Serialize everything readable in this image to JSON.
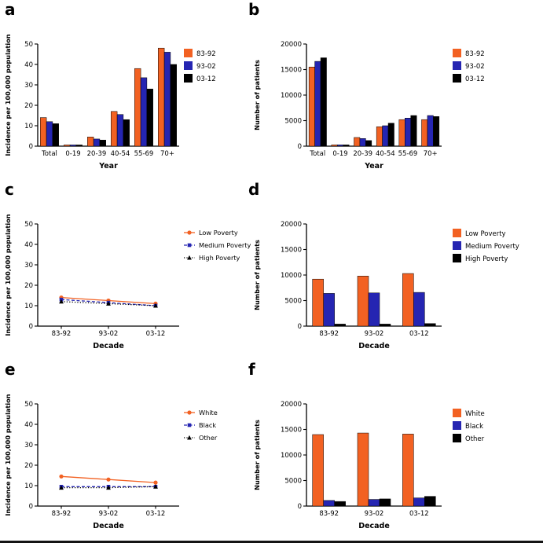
{
  "figure": {
    "background": "#ffffff"
  },
  "colors": {
    "orange": "#F26122",
    "blue": "#2525B2",
    "black": "#000000"
  },
  "chart_data": [
    {
      "panel": "a",
      "type": "bar",
      "column": "left",
      "xlabel": "Year",
      "ylabel": "Incidence per 100,000 population",
      "ylim": [
        0,
        50
      ],
      "yticks": [
        0,
        10,
        20,
        30,
        40,
        50
      ],
      "grid": false,
      "legend_position": "right",
      "categories": [
        "Total",
        "0-19",
        "20-39",
        "40-54",
        "55-69",
        "70+"
      ],
      "series": [
        {
          "name": "83-92",
          "color": "#F26122",
          "values": [
            14,
            0.6,
            4.5,
            17,
            38,
            48
          ]
        },
        {
          "name": "93-02",
          "color": "#2525B2",
          "values": [
            12,
            0.6,
            3.5,
            15.5,
            33.5,
            46
          ]
        },
        {
          "name": "03-12",
          "color": "#000000",
          "values": [
            11,
            0.6,
            3.0,
            13,
            28,
            40
          ]
        }
      ]
    },
    {
      "panel": "b",
      "type": "bar",
      "column": "right",
      "xlabel": "Year",
      "ylabel": "Number of patients",
      "ylim": [
        0,
        20000
      ],
      "yticks": [
        0,
        5000,
        10000,
        15000,
        20000
      ],
      "grid": false,
      "legend_position": "right",
      "categories": [
        "Total",
        "0-19",
        "20-39",
        "40-54",
        "55-69",
        "70+"
      ],
      "series": [
        {
          "name": "83-92",
          "color": "#F26122",
          "values": [
            15500,
            250,
            1700,
            3800,
            5200,
            5200
          ]
        },
        {
          "name": "93-02",
          "color": "#2525B2",
          "values": [
            16600,
            250,
            1500,
            4000,
            5500,
            6000
          ]
        },
        {
          "name": "03-12",
          "color": "#000000",
          "values": [
            17300,
            250,
            1100,
            4500,
            6000,
            5800
          ]
        }
      ]
    },
    {
      "panel": "c",
      "type": "line",
      "column": "left",
      "xlabel": "Decade",
      "ylabel": "Incidence per 100,000 population",
      "ylim": [
        0,
        50
      ],
      "yticks": [
        0,
        10,
        20,
        30,
        40,
        50
      ],
      "grid": false,
      "legend_position": "right",
      "categories": [
        "83-92",
        "93-02",
        "03-12"
      ],
      "series": [
        {
          "name": "Low Poverty",
          "color": "#F26122",
          "marker": "circle",
          "dash": "",
          "values": [
            14,
            12.5,
            11
          ]
        },
        {
          "name": "Medium Poverty",
          "color": "#2525B2",
          "marker": "square",
          "dash": "4,2.5",
          "values": [
            13,
            11.5,
            10
          ]
        },
        {
          "name": "High Poverty",
          "color": "#000000",
          "marker": "triangle",
          "dash": "1.2,2.2",
          "values": [
            12,
            11,
            10
          ]
        }
      ]
    },
    {
      "panel": "d",
      "type": "bar",
      "column": "right",
      "xlabel": "Decade",
      "ylabel": "Number of patients",
      "ylim": [
        0,
        20000
      ],
      "yticks": [
        0,
        5000,
        10000,
        15000,
        20000
      ],
      "grid": false,
      "legend_position": "right",
      "categories": [
        "83-92",
        "93-02",
        "03-12"
      ],
      "series": [
        {
          "name": "Low Poverty",
          "color": "#F26122",
          "values": [
            9200,
            9800,
            10300
          ]
        },
        {
          "name": "Medium Poverty",
          "color": "#2525B2",
          "values": [
            6400,
            6500,
            6600
          ]
        },
        {
          "name": "High Poverty",
          "color": "#000000",
          "values": [
            400,
            400,
            500
          ]
        }
      ]
    },
    {
      "panel": "e",
      "type": "line",
      "column": "left",
      "xlabel": "Decade",
      "ylabel": "Incidence per 100,000 population",
      "ylim": [
        0,
        50
      ],
      "yticks": [
        0,
        10,
        20,
        30,
        40,
        50
      ],
      "grid": false,
      "legend_position": "right",
      "categories": [
        "83-92",
        "93-02",
        "03-12"
      ],
      "series": [
        {
          "name": "White",
          "color": "#F26122",
          "marker": "circle",
          "dash": "",
          "values": [
            14.5,
            13,
            11.5
          ]
        },
        {
          "name": "Black",
          "color": "#2525B2",
          "marker": "square",
          "dash": "4,2.5",
          "values": [
            9.5,
            9.5,
            9.5
          ]
        },
        {
          "name": "Other",
          "color": "#000000",
          "marker": "triangle",
          "dash": "1.2,2.2",
          "values": [
            9,
            9,
            9.5
          ]
        }
      ]
    },
    {
      "panel": "f",
      "type": "bar",
      "column": "right",
      "xlabel": "Decade",
      "ylabel": "Number of patients",
      "ylim": [
        0,
        20000
      ],
      "yticks": [
        0,
        5000,
        10000,
        15000,
        20000
      ],
      "grid": false,
      "legend_position": "right",
      "categories": [
        "83-92",
        "93-02",
        "03-12"
      ],
      "series": [
        {
          "name": "White",
          "color": "#F26122",
          "values": [
            14000,
            14300,
            14100
          ]
        },
        {
          "name": "Black",
          "color": "#2525B2",
          "values": [
            1100,
            1300,
            1600
          ]
        },
        {
          "name": "Other",
          "color": "#000000",
          "values": [
            900,
            1400,
            1900
          ]
        }
      ]
    }
  ]
}
